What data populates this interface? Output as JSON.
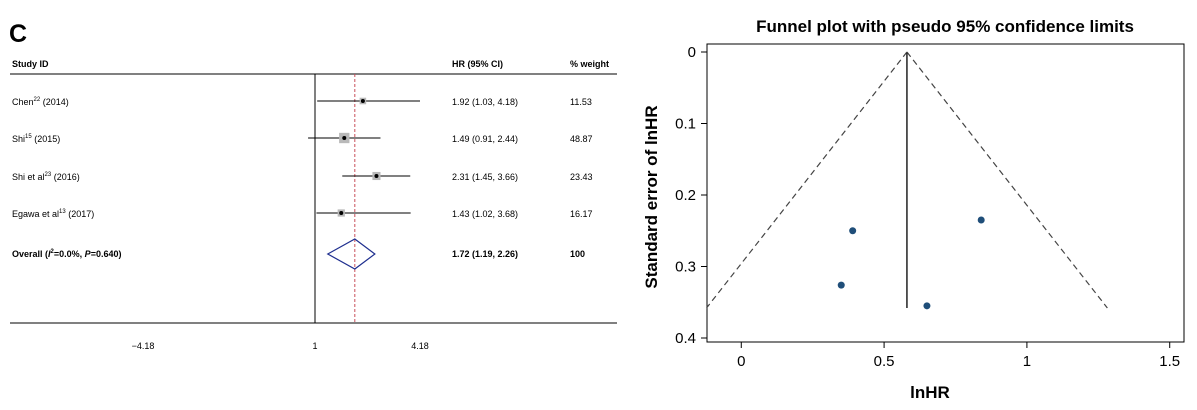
{
  "panel_letter": "C",
  "colors": {
    "line": "#000000",
    "ref_line": "#c8505a",
    "diamond": "#1f2f8f",
    "weight_box": "#b9b9b9",
    "funnel_point": "#1f4e79"
  },
  "chart_data": [
    {
      "type": "forest",
      "columns": {
        "study": "Study ID",
        "hr": "HR (95% CI)",
        "weight": "% weight"
      },
      "x_axis": {
        "ticks": [
          -4.18,
          1,
          4.18
        ],
        "tick_labels": [
          "−4.18",
          "1",
          "4.18"
        ],
        "reference_line": 1
      },
      "studies": [
        {
          "label_main": "Chen",
          "label_sup": "22",
          "label_tail": " (2014)",
          "hr": 1.92,
          "ci": [
            1.03,
            4.18
          ],
          "hr_text": "1.92 (1.03, 4.18)",
          "weight": 11.53,
          "weight_text": "11.53"
        },
        {
          "label_main": "Shi",
          "label_sup": "15",
          "label_tail": " (2015)",
          "hr": 1.49,
          "ci": [
            0.91,
            2.44
          ],
          "hr_text": "1.49 (0.91, 2.44)",
          "weight": 48.87,
          "weight_text": "48.87"
        },
        {
          "label_main": "Shi et al",
          "label_sup": "23",
          "label_tail": " (2016)",
          "hr": 2.31,
          "ci": [
            1.45,
            3.66
          ],
          "hr_text": "2.31 (1.45, 3.66)",
          "weight": 23.43,
          "weight_text": "23.43"
        },
        {
          "label_main": "Egawa et al",
          "label_sup": "13",
          "label_tail": " (2017)",
          "hr": 1.43,
          "ci": [
            1.02,
            3.68
          ],
          "hr_text": "1.43 (1.02, 3.68)",
          "weight": 16.17,
          "weight_text": "16.17"
        }
      ],
      "overall": {
        "label_a": "Overall (",
        "label_i": "I",
        "label_sup": "2",
        "label_b": "=0.0%, ",
        "label_p": "P",
        "label_c": "=0.640)",
        "hr": 1.72,
        "ci": [
          1.19,
          2.26
        ],
        "hr_text": "1.72 (1.19, 2.26)",
        "weight_text": "100"
      }
    },
    {
      "type": "scatter",
      "title": "Funnel plot with pseudo 95% confidence limits",
      "xlabel": "lnHR",
      "ylabel": "Standard error of lnHR",
      "x_ticks": [
        0,
        0.5,
        1,
        1.5
      ],
      "x_tick_labels": [
        "0",
        "0.5",
        "1",
        "1.5"
      ],
      "y_ticks": [
        0,
        0.1,
        0.2,
        0.3,
        0.4
      ],
      "y_tick_labels": [
        "0",
        "0.1",
        "0.2",
        "0.3",
        "0.4"
      ],
      "xlim": [
        -0.12,
        1.55
      ],
      "ylim": [
        0,
        0.4
      ],
      "y_reversed": true,
      "pooled_estimate": 0.58,
      "max_se": 0.358,
      "points": [
        {
          "x": 0.39,
          "y": 0.25
        },
        {
          "x": 0.84,
          "y": 0.235
        },
        {
          "x": 0.35,
          "y": 0.326
        },
        {
          "x": 0.65,
          "y": 0.355
        }
      ]
    }
  ]
}
